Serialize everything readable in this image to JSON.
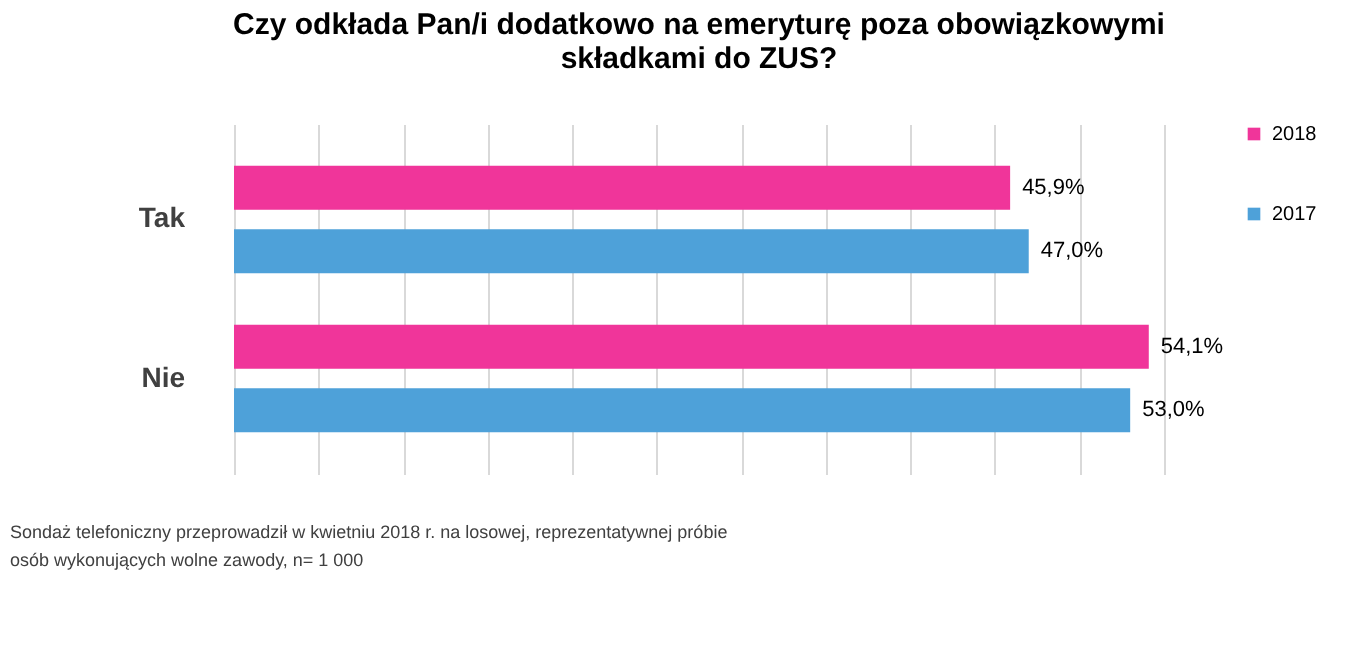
{
  "chart_data": {
    "type": "bar",
    "orientation": "horizontal",
    "title": "Czy odkłada Pan/i dodatkowo na emeryturę poza obowiązkowymi składkami do ZUS?",
    "categories": [
      "Tak",
      "Nie"
    ],
    "series": [
      {
        "name": "2018",
        "color": "#f0359a",
        "values": [
          45.9,
          54.1
        ],
        "value_labels": [
          "45,9%",
          "54,1%"
        ]
      },
      {
        "name": "2017",
        "color": "#4ea1d9",
        "values": [
          47.0,
          53.0
        ],
        "value_labels": [
          "47,0%",
          "53,0%"
        ]
      }
    ],
    "grid": "x",
    "tick_labels": "y",
    "legend": "right",
    "annotations": [
      "Sondaż telefoniczny przeprowadził w kwietniu 2018 r. na losowej, reprezentatywnej próbie osób wykonujących wolne zawody, n= 1 000"
    ]
  }
}
